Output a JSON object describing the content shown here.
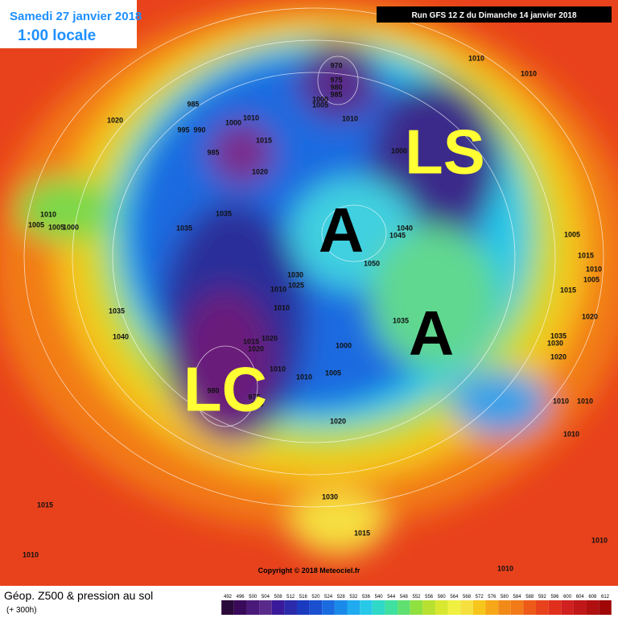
{
  "header": {
    "date": "Samedi 27 janvier 2018",
    "time": "1:00 locale",
    "run": "Run GFS 12 Z du Dimanche 14 janvier 2018"
  },
  "map": {
    "symbols": [
      "LS",
      "A",
      "A",
      "LC"
    ],
    "pressure_labels": [
      1020,
      985,
      995,
      990,
      1000,
      1010,
      985,
      1015,
      1020,
      970,
      975,
      980,
      985,
      1000,
      1005,
      1010,
      1010,
      1010,
      1000,
      1010,
      1005,
      1005,
      1000,
      1035,
      1035,
      1040,
      1045,
      1050,
      1005,
      1015,
      1010,
      1005,
      1015,
      1030,
      1025,
      1010,
      1010,
      1035,
      1035,
      1020,
      1040,
      1015,
      1020,
      1020,
      1000,
      1035,
      1030,
      1020,
      1010,
      1005,
      1010,
      980,
      975,
      980,
      1010,
      1010,
      1020,
      1010,
      1030,
      1015,
      1015,
      1010,
      1010,
      1010
    ]
  },
  "footer": {
    "copyright": "Copyright © 2018 Meteociel.fr",
    "title": "Géop. Z500 & pression au sol",
    "subtitle": "(+ 300h)",
    "scale": [
      492,
      496,
      500,
      504,
      508,
      512,
      516,
      520,
      524,
      528,
      532,
      536,
      540,
      544,
      548,
      552,
      556,
      560,
      564,
      568,
      572,
      576,
      580,
      584,
      588,
      592,
      596,
      600,
      604,
      608,
      612
    ]
  }
}
